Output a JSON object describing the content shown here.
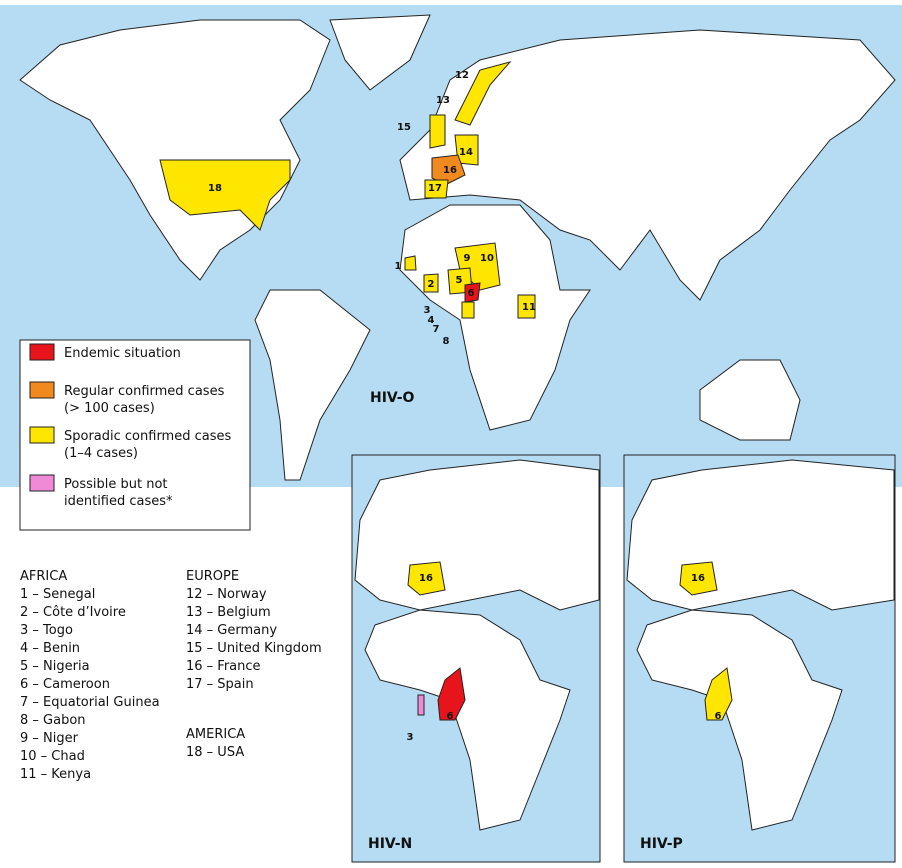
{
  "maps": [
    {
      "title": "HIV-O",
      "markers": [
        "18",
        "12",
        "13",
        "15",
        "14",
        "16",
        "17",
        "9",
        "10",
        "1",
        "2",
        "5",
        "6",
        "3",
        "4",
        "7",
        "8",
        "11"
      ]
    },
    {
      "title": "HIV-N",
      "markers": [
        "16",
        "6",
        "3"
      ]
    },
    {
      "title": "HIV-P",
      "markers": [
        "16",
        "6"
      ]
    }
  ],
  "legend": [
    {
      "color": "#e8141b",
      "lines": [
        "Endemic situation"
      ]
    },
    {
      "color": "#f08a1e",
      "lines": [
        "Regular confirmed cases",
        "(> 100 cases)"
      ]
    },
    {
      "color": "#ffe600",
      "lines": [
        "Sporadic confirmed cases",
        "(1–4 cases)"
      ]
    },
    {
      "color": "#f08ad8",
      "lines": [
        "Possible but not",
        "identified cases*"
      ]
    }
  ],
  "key": [
    {
      "heading": "AFRICA",
      "items": [
        "1 – Senegal",
        "2 – Côte d’Ivoire",
        "3 – Togo",
        "4 – Benin",
        "5 – Nigeria",
        "6 – Cameroon",
        "7 – Equatorial Guinea",
        "8 – Gabon",
        "9 – Niger",
        "10 – Chad",
        "11 – Kenya"
      ]
    },
    {
      "heading": "EUROPE",
      "items": [
        "12 – Norway",
        "13 – Belgium",
        "14 – Germany",
        "15 – United Kingdom",
        "16 – France",
        "17 – Spain"
      ]
    },
    {
      "heading": "AMERICA",
      "items": [
        "18 – USA"
      ]
    }
  ]
}
